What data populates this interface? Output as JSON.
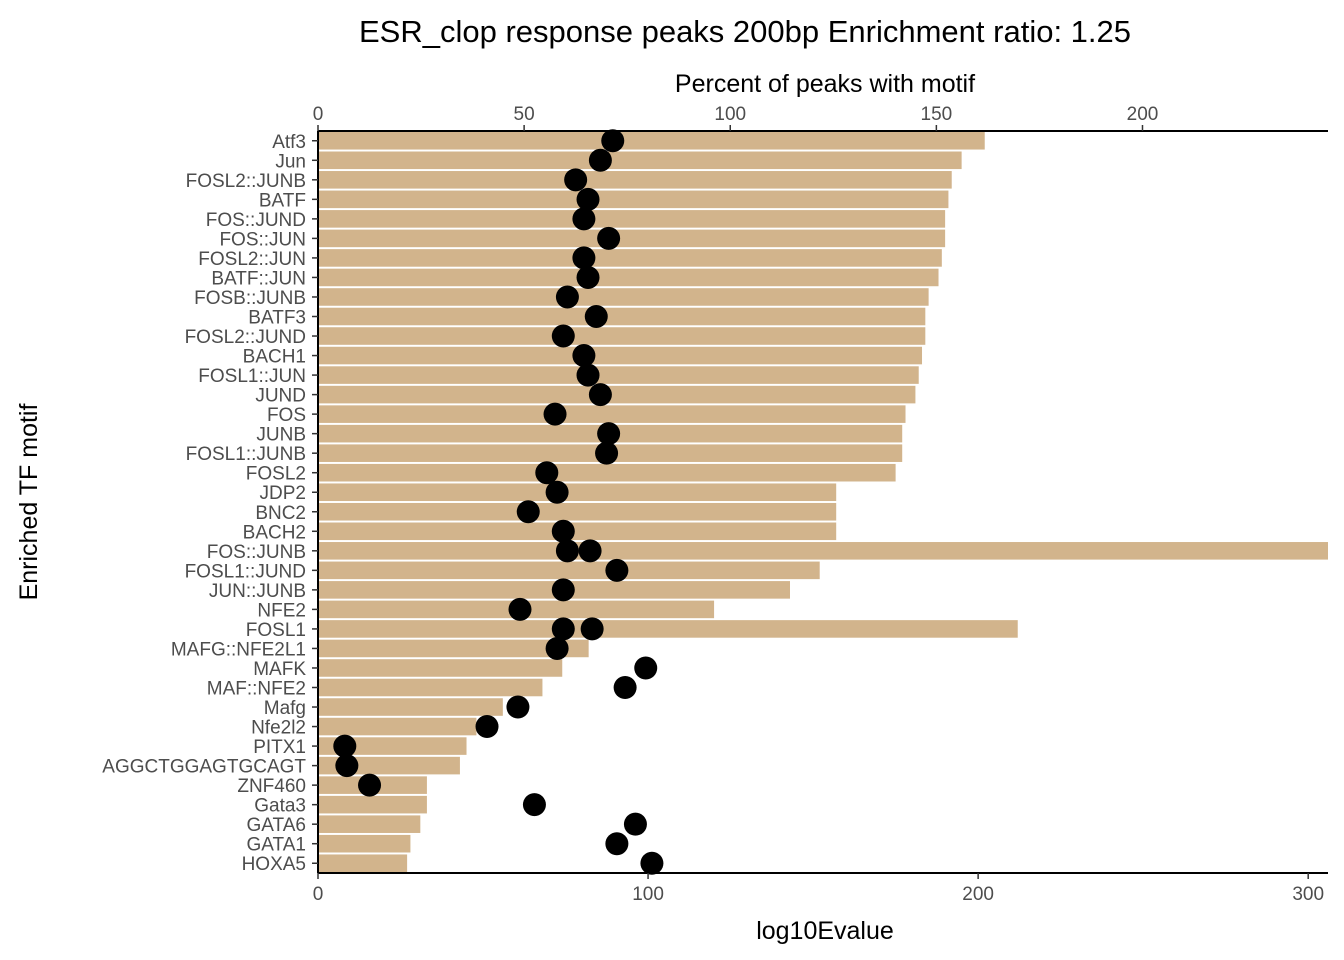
{
  "chart_data": {
    "type": "bar",
    "title": "ESR_clop response peaks 200bp Enrichment ratio: 1.25",
    "xlabel": "log10Evalue",
    "ylabel": "Enriched TF motif",
    "x2label": "Percent of peaks with motif",
    "xlim": [
      0,
      306
    ],
    "x2lim": [
      0,
      245
    ],
    "xticks": [
      0,
      100,
      200,
      300
    ],
    "x2ticks": [
      0,
      50,
      100,
      150,
      200
    ],
    "bar_color": "#D2B48C",
    "point_color": "#000000",
    "grid": false,
    "categories": [
      "Atf3",
      "Jun",
      "FOSL2::JUNB",
      "BATF",
      "FOS::JUND",
      "FOS::JUN",
      "FOSL2::JUN",
      "BATF::JUN",
      "FOSB::JUNB",
      "BATF3",
      "FOSL2::JUND",
      "BACH1",
      "FOSL1::JUN",
      "JUND",
      "FOS",
      "JUNB",
      "FOSL1::JUNB",
      "FOSL2",
      "JDP2",
      "BNC2",
      "BACH2",
      "FOS::JUNB",
      "FOSL1::JUND",
      "JUN::JUNB",
      "NFE2",
      "FOSL1",
      "MAFG::NFE2L1",
      "MAFK",
      "MAF::NFE2",
      "Mafg",
      "Nfe2l2",
      "PITX1",
      "AGGCTGGAGTGCAGT",
      "ZNF460",
      "Gata3",
      "GATA6",
      "GATA1",
      "HOXA5"
    ],
    "series": [
      {
        "name": "log10Evalue",
        "type": "bar",
        "axis": "bottom",
        "values": [
          202,
          195,
          192,
          191,
          190,
          190,
          189,
          188,
          185,
          184,
          184,
          183,
          182,
          181,
          178,
          177,
          177,
          175,
          157,
          157,
          157,
          306,
          152,
          143,
          120,
          212,
          82,
          74,
          68,
          56,
          48,
          45,
          43,
          33,
          33,
          31,
          28,
          27
        ]
      },
      {
        "name": "Percent of peaks with motif",
        "type": "scatter",
        "axis": "top",
        "values": [
          [
            71.5
          ],
          [
            68.5
          ],
          [
            62.5
          ],
          [
            65.5
          ],
          [
            64.5
          ],
          [
            70.5
          ],
          [
            64.5
          ],
          [
            65.5
          ],
          [
            60.5
          ],
          [
            67.5
          ],
          [
            59.5
          ],
          [
            64.5
          ],
          [
            65.5
          ],
          [
            68.5
          ],
          [
            57.5
          ],
          [
            70.5
          ],
          [
            70
          ],
          [
            55.5
          ],
          [
            58
          ],
          [
            51
          ],
          [
            59.5
          ],
          [
            [
              60.5,
              66
            ]
          ],
          [
            72.5
          ],
          [
            59.5
          ],
          [
            49
          ],
          [
            [
              59.5,
              66.5
            ]
          ],
          [
            58
          ],
          [
            79.5
          ],
          [
            74.5
          ],
          [
            48.5
          ],
          [
            41
          ],
          [
            6.5
          ],
          [
            7
          ],
          [
            12.5
          ],
          [
            52.5
          ],
          [
            77
          ],
          [
            72.5
          ],
          [
            81
          ]
        ]
      }
    ]
  }
}
